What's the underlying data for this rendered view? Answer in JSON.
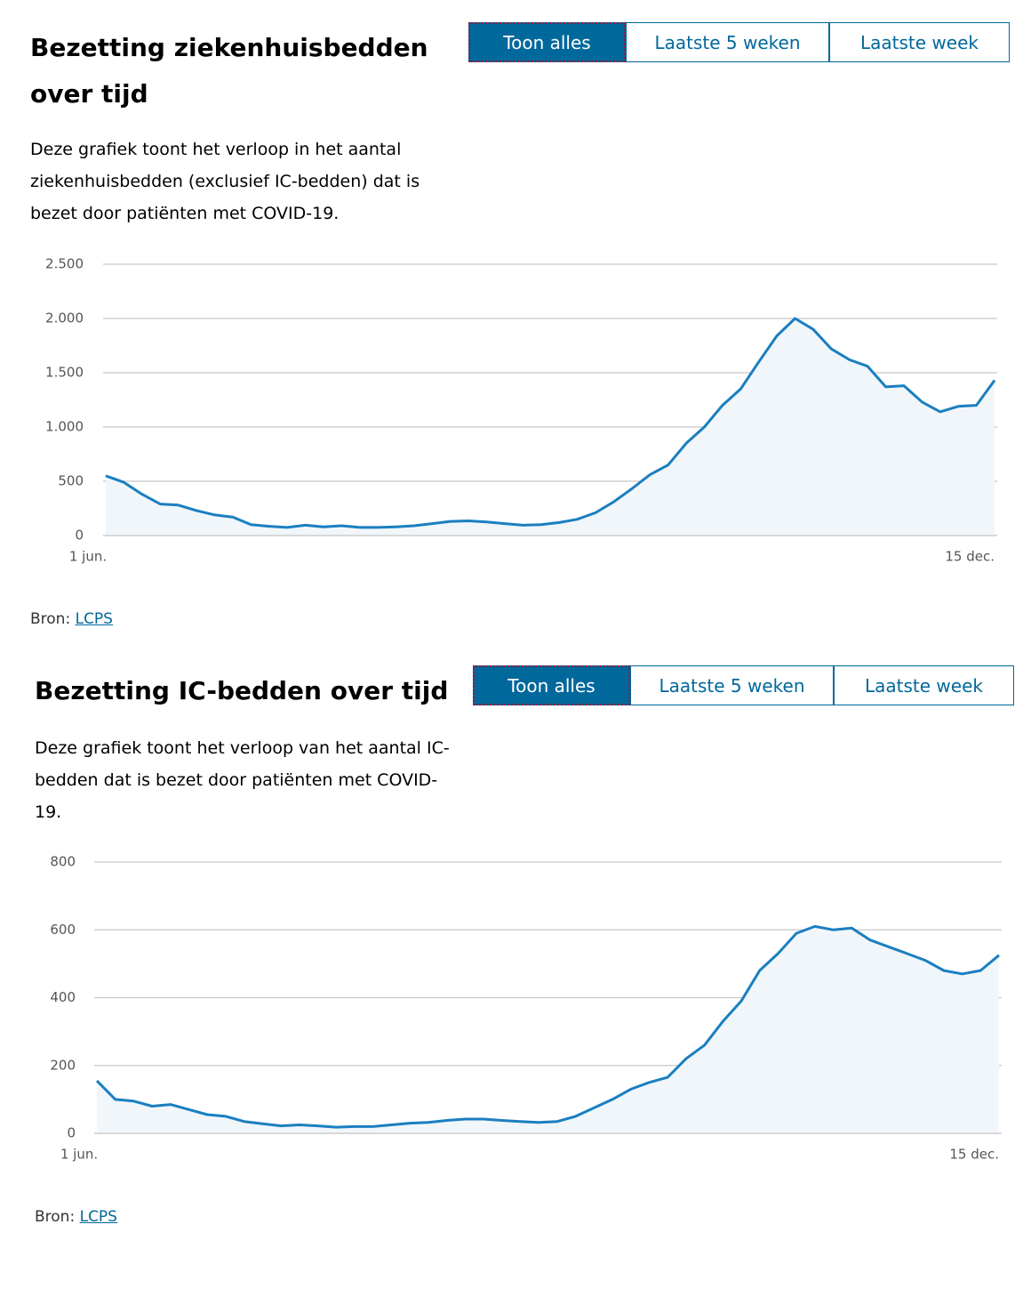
{
  "chart_data": [
    {
      "type": "line",
      "title": "Bezetting ziekenhuisbedden over tijd",
      "buttons": [
        "Toon alles",
        "Laatste 5 weken",
        "Laatste week"
      ],
      "description": "Deze grafiek toont het verloop in het aantal ziekenhuisbedden (exclusief IC-bedden) dat is bezet door patiënten met COVID-19.",
      "source_label": "Bron:",
      "source_link": "LCPS",
      "categories": [
        "1 jun.",
        null,
        null,
        null,
        null,
        null,
        null,
        null,
        null,
        null,
        null,
        null,
        null,
        null,
        null,
        null,
        null,
        null,
        null,
        null,
        null,
        null,
        null,
        null,
        null,
        null,
        null,
        null,
        null,
        null,
        null,
        null,
        null,
        null,
        null,
        null,
        null,
        null,
        null,
        null,
        null,
        null,
        null,
        null,
        null,
        null,
        null,
        null,
        null,
        "15 dec."
      ],
      "values": [
        550,
        490,
        380,
        290,
        280,
        230,
        190,
        170,
        100,
        85,
        75,
        95,
        80,
        90,
        75,
        75,
        80,
        90,
        110,
        130,
        135,
        125,
        110,
        95,
        100,
        120,
        150,
        210,
        310,
        430,
        560,
        650,
        850,
        1000,
        1200,
        1350,
        1600,
        1840,
        2000,
        1900,
        1720,
        1620,
        1560,
        1370,
        1380,
        1230,
        1140,
        1190,
        1200,
        1430
      ],
      "color": "#1a7fc0",
      "ylim": [
        0,
        2500
      ],
      "yticks": [
        0,
        500,
        {
          "value": 1000,
          "label": "1.000"
        },
        {
          "value": 1500,
          "label": "1.500"
        },
        {
          "value": 2000,
          "label": "2.000"
        },
        {
          "value": 2500,
          "label": "2.500"
        }
      ],
      "grid": true
    },
    {
      "type": "line",
      "title": "Bezetting IC-bedden over tijd",
      "buttons": [
        "Toon alles",
        "Laatste 5 weken",
        "Laatste week"
      ],
      "description": "Deze grafiek toont het verloop van het aantal IC-bedden dat is bezet door patiënten met COVID-19.",
      "source_label": "Bron:",
      "source_link": "LCPS",
      "categories": [
        "1 jun.",
        null,
        null,
        null,
        null,
        null,
        null,
        null,
        null,
        null,
        null,
        null,
        null,
        null,
        null,
        null,
        null,
        null,
        null,
        null,
        null,
        null,
        null,
        null,
        null,
        null,
        null,
        null,
        null,
        null,
        null,
        null,
        null,
        null,
        null,
        null,
        null,
        null,
        null,
        null,
        null,
        null,
        null,
        null,
        null,
        null,
        null,
        null,
        null,
        "15 dec."
      ],
      "values": [
        155,
        100,
        95,
        80,
        85,
        70,
        55,
        50,
        35,
        28,
        22,
        25,
        22,
        18,
        20,
        20,
        25,
        30,
        32,
        38,
        42,
        42,
        38,
        35,
        32,
        35,
        50,
        75,
        100,
        130,
        150,
        165,
        220,
        260,
        330,
        390,
        480,
        530,
        590,
        610,
        600,
        605,
        570,
        550,
        530,
        510,
        480,
        470,
        480,
        525
      ],
      "color": "#1a7fc0",
      "ylim": [
        0,
        800
      ],
      "yticks": [
        0,
        200,
        400,
        600,
        800
      ],
      "grid": true
    }
  ]
}
